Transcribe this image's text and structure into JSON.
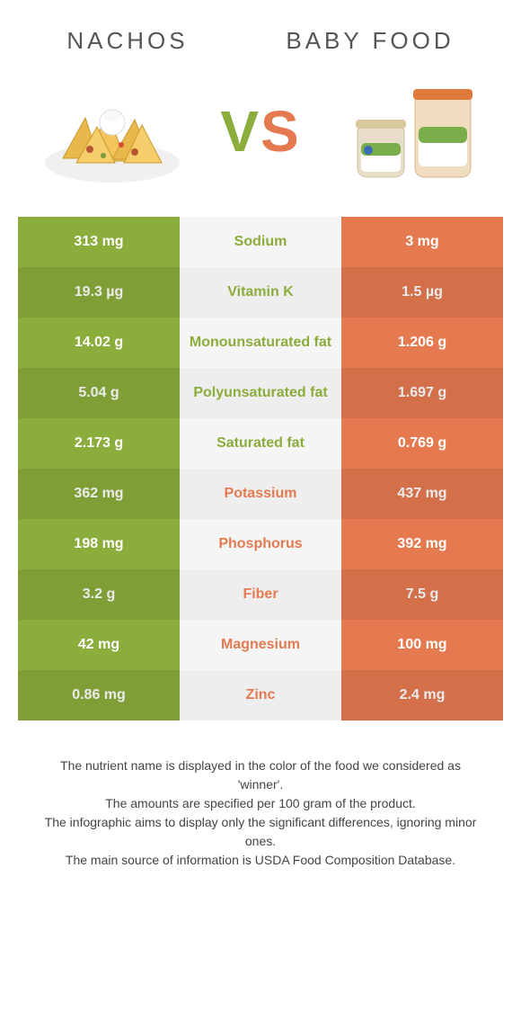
{
  "colors": {
    "left": "#8aad3b",
    "right": "#e57a50",
    "mid_bg_a": "#f5f5f5",
    "mid_bg_b": "#eeeeee",
    "text_dark": "#444444"
  },
  "header": {
    "left_title": "Nachos",
    "right_title": "Baby food",
    "vs_v": "V",
    "vs_s": "S"
  },
  "table": {
    "left_color": "#8aad3b",
    "right_color": "#e57a50",
    "rows": [
      {
        "left": "313 mg",
        "label": "Sodium",
        "right": "3 mg",
        "winner": "left"
      },
      {
        "left": "19.3 µg",
        "label": "Vitamin K",
        "right": "1.5 µg",
        "winner": "left"
      },
      {
        "left": "14.02 g",
        "label": "Monounsaturated fat",
        "right": "1.206 g",
        "winner": "left"
      },
      {
        "left": "5.04 g",
        "label": "Polyunsaturated fat",
        "right": "1.697 g",
        "winner": "left"
      },
      {
        "left": "2.173 g",
        "label": "Saturated fat",
        "right": "0.769 g",
        "winner": "left"
      },
      {
        "left": "362 mg",
        "label": "Potassium",
        "right": "437 mg",
        "winner": "right"
      },
      {
        "left": "198 mg",
        "label": "Phosphorus",
        "right": "392 mg",
        "winner": "right"
      },
      {
        "left": "3.2 g",
        "label": "Fiber",
        "right": "7.5 g",
        "winner": "right"
      },
      {
        "left": "42 mg",
        "label": "Magnesium",
        "right": "100 mg",
        "winner": "right"
      },
      {
        "left": "0.86 mg",
        "label": "Zinc",
        "right": "2.4 mg",
        "winner": "right"
      }
    ]
  },
  "footer": {
    "line1": "The nutrient name is displayed in the color of the food we considered as 'winner'.",
    "line2": "The amounts are specified per 100 gram of the product.",
    "line3": "The infographic aims to display only the significant differences, ignoring minor ones.",
    "line4": "The main source of information is USDA Food Composition Database."
  }
}
